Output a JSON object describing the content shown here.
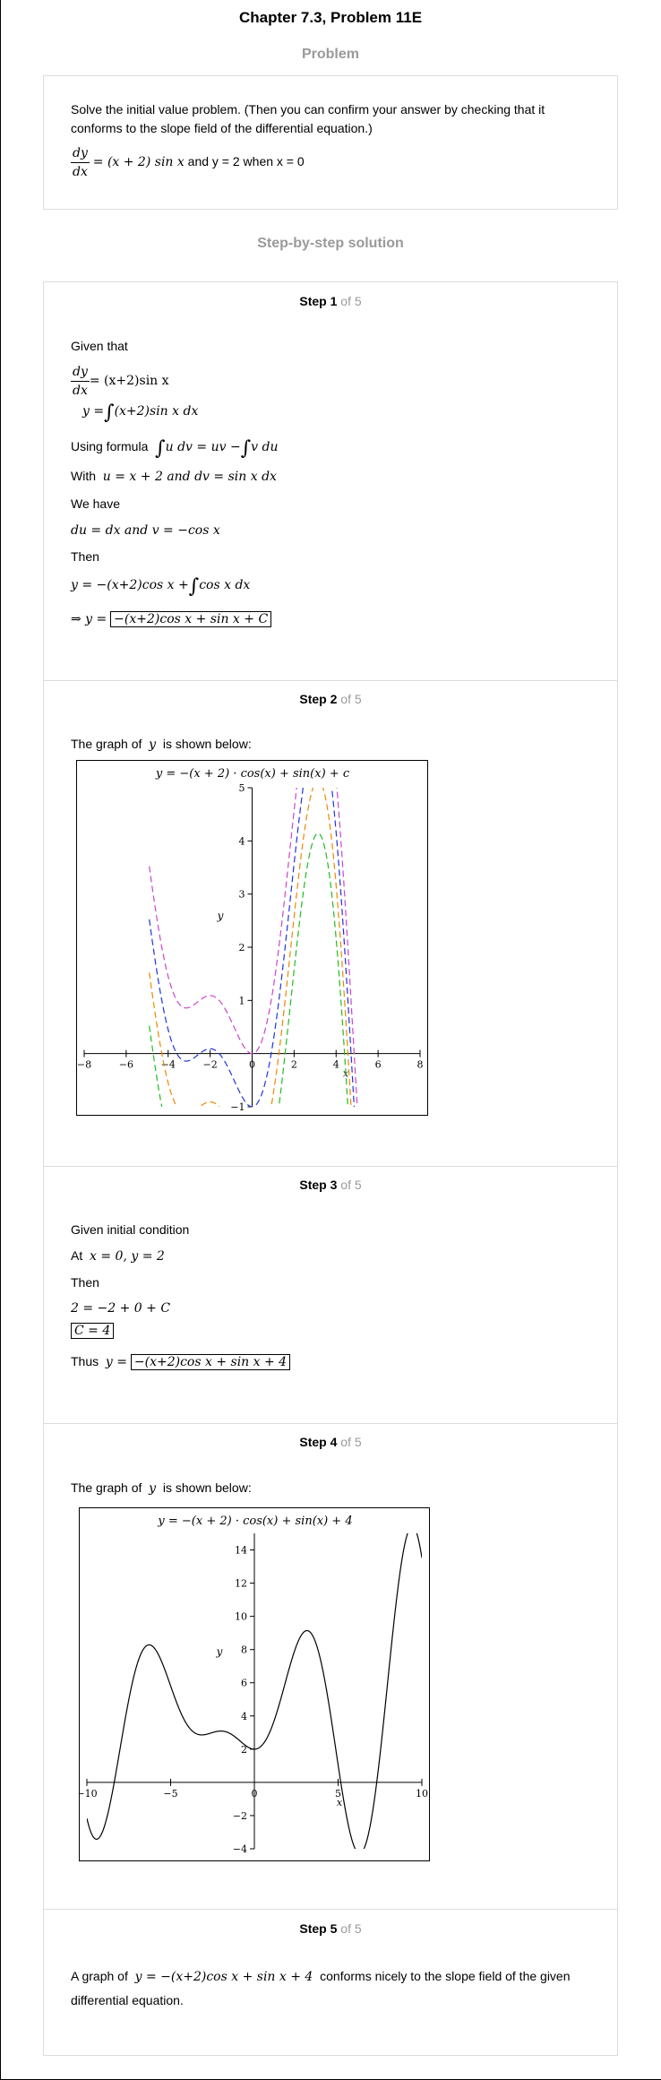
{
  "header": {
    "title": "Chapter 7.3, Problem 11E"
  },
  "problem": {
    "heading": "Problem",
    "statement": "Solve the initial value problem. (Then you can confirm your answer by checking that it conforms to the slope field of the differential equation.)",
    "eq_lhs_num": "dy",
    "eq_lhs_den": "dx",
    "eq_rhs": "= (x + 2) sin x",
    "condition": "and y = 2 when x = 0"
  },
  "solution": {
    "heading": "Step-by-step solution",
    "step_word": "Step",
    "of_label": "of 5"
  },
  "step1": {
    "number": "1",
    "given": "Given that",
    "ode_rhs": "= (x+2)sin x",
    "integral_lhs": "y =",
    "integral_body": "(x+2)sin x dx",
    "using": "Using formula",
    "formula_a": "u dv = uv −",
    "formula_b": "v du",
    "with": "With",
    "with_math": "u = x + 2  and  dv = sin x dx",
    "we_have": "We have",
    "have_math": "du = dx  and  v = −cos x",
    "then": "Then",
    "then_math_a": "y = −(x+2)cos x +",
    "then_math_b": "cos x dx",
    "implies": "⇒ y =",
    "result": "−(x+2)cos x + sin x + C"
  },
  "step2": {
    "number": "2",
    "intro": "The graph of",
    "var": "y",
    "intro_end": "is shown below:"
  },
  "step3": {
    "number": "3",
    "given": "Given initial condition",
    "at": "At",
    "at_math": "x = 0, y = 2",
    "then": "Then",
    "eq": "2 = −2 + 0 + C",
    "c_value": "C = 4",
    "thus": "Thus",
    "thus_lhs": "y =",
    "thus_result": "−(x+2)cos x + sin x + 4"
  },
  "step4": {
    "number": "4",
    "intro": "The graph of",
    "var": "y",
    "intro_end": "is shown below:"
  },
  "step5": {
    "number": "5",
    "text_a": "A graph of",
    "text_math": "y = −(x+2)cos x + sin x + 4",
    "text_b": "conforms nicely to the slope field of the given differential equation."
  },
  "chart_data": [
    {
      "type": "line",
      "title": "y = −(x + 2) · cos(x) + sin(x) + c",
      "xlabel": "x",
      "ylabel": "y",
      "xlim": [
        -8,
        8
      ],
      "ylim": [
        -1,
        5
      ],
      "xticks": [
        "−8",
        "−6",
        "−4",
        "−2",
        "0",
        "2",
        "4",
        "6",
        "8"
      ],
      "yticks": [
        "−1",
        "1",
        "2",
        "3",
        "4",
        "5"
      ],
      "line_style": "dashed",
      "series": [
        {
          "c": 2,
          "color": "#cc44cc"
        },
        {
          "c": 1,
          "color": "#2233dd"
        },
        {
          "c": 0,
          "color": "#ee8800"
        },
        {
          "c": -1,
          "color": "#22bb22"
        }
      ]
    },
    {
      "type": "line",
      "title": "y = −(x + 2) · cos(x) + sin(x) + 4",
      "xlabel": "x",
      "ylabel": "y",
      "xlim": [
        -10,
        10
      ],
      "ylim": [
        -4,
        15
      ],
      "xticks": [
        "−10",
        "−5",
        "0",
        "5",
        "10"
      ],
      "yticks": [
        "−4",
        "−2",
        "2",
        "4",
        "6",
        "8",
        "10",
        "12",
        "14"
      ],
      "series": [
        {
          "c": 4,
          "color": "#000000"
        }
      ]
    }
  ]
}
